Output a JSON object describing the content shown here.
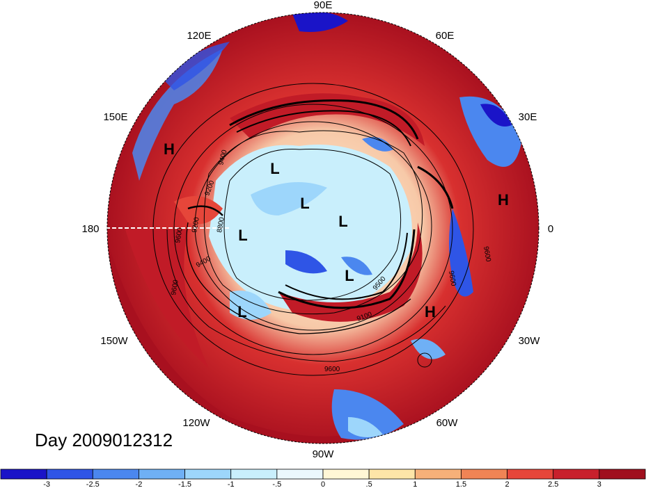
{
  "date_label": "Day 2009012312",
  "longitude_labels": [
    {
      "key": "90e",
      "text": "90E"
    },
    {
      "key": "60e",
      "text": "60E"
    },
    {
      "key": "30e",
      "text": "30E"
    },
    {
      "key": "0",
      "text": "0"
    },
    {
      "key": "30w",
      "text": "30W"
    },
    {
      "key": "60w",
      "text": "60W"
    },
    {
      "key": "90w",
      "text": "90W"
    },
    {
      "key": "120w",
      "text": "120W"
    },
    {
      "key": "150w",
      "text": "150W"
    },
    {
      "key": "180",
      "text": "180"
    },
    {
      "key": "150e",
      "text": "150E"
    },
    {
      "key": "120e",
      "text": "120E"
    }
  ],
  "pressure_systems": [
    {
      "type": "H",
      "label": "H"
    },
    {
      "type": "H",
      "label": "H"
    },
    {
      "type": "H",
      "label": "H"
    },
    {
      "type": "L",
      "label": "L"
    },
    {
      "type": "L",
      "label": "L"
    },
    {
      "type": "L",
      "label": "L"
    },
    {
      "type": "L",
      "label": "L"
    },
    {
      "type": "L",
      "label": "L"
    },
    {
      "type": "L",
      "label": "L"
    }
  ],
  "contour_labels": [
    "9400",
    "9200",
    "8800",
    "9200",
    "9400",
    "9600",
    "9600",
    "9100",
    "9600",
    "9600",
    "9500",
    "9600"
  ],
  "colorbar": {
    "ticks": [
      "-3",
      "-2.5",
      "-2",
      "-1.5",
      "-1",
      "-.5",
      "0",
      ".5",
      "1",
      "1.5",
      "2",
      "2.5",
      "3"
    ],
    "colors": [
      "#1a14c8",
      "#2f55e6",
      "#4b87ef",
      "#6fb0f5",
      "#9dd6fb",
      "#c9effc",
      "#ebf8fd",
      "#fff7d6",
      "#fde5a8",
      "#f6b079",
      "#f08455",
      "#e6463a",
      "#c8202c",
      "#a0101e"
    ]
  }
}
